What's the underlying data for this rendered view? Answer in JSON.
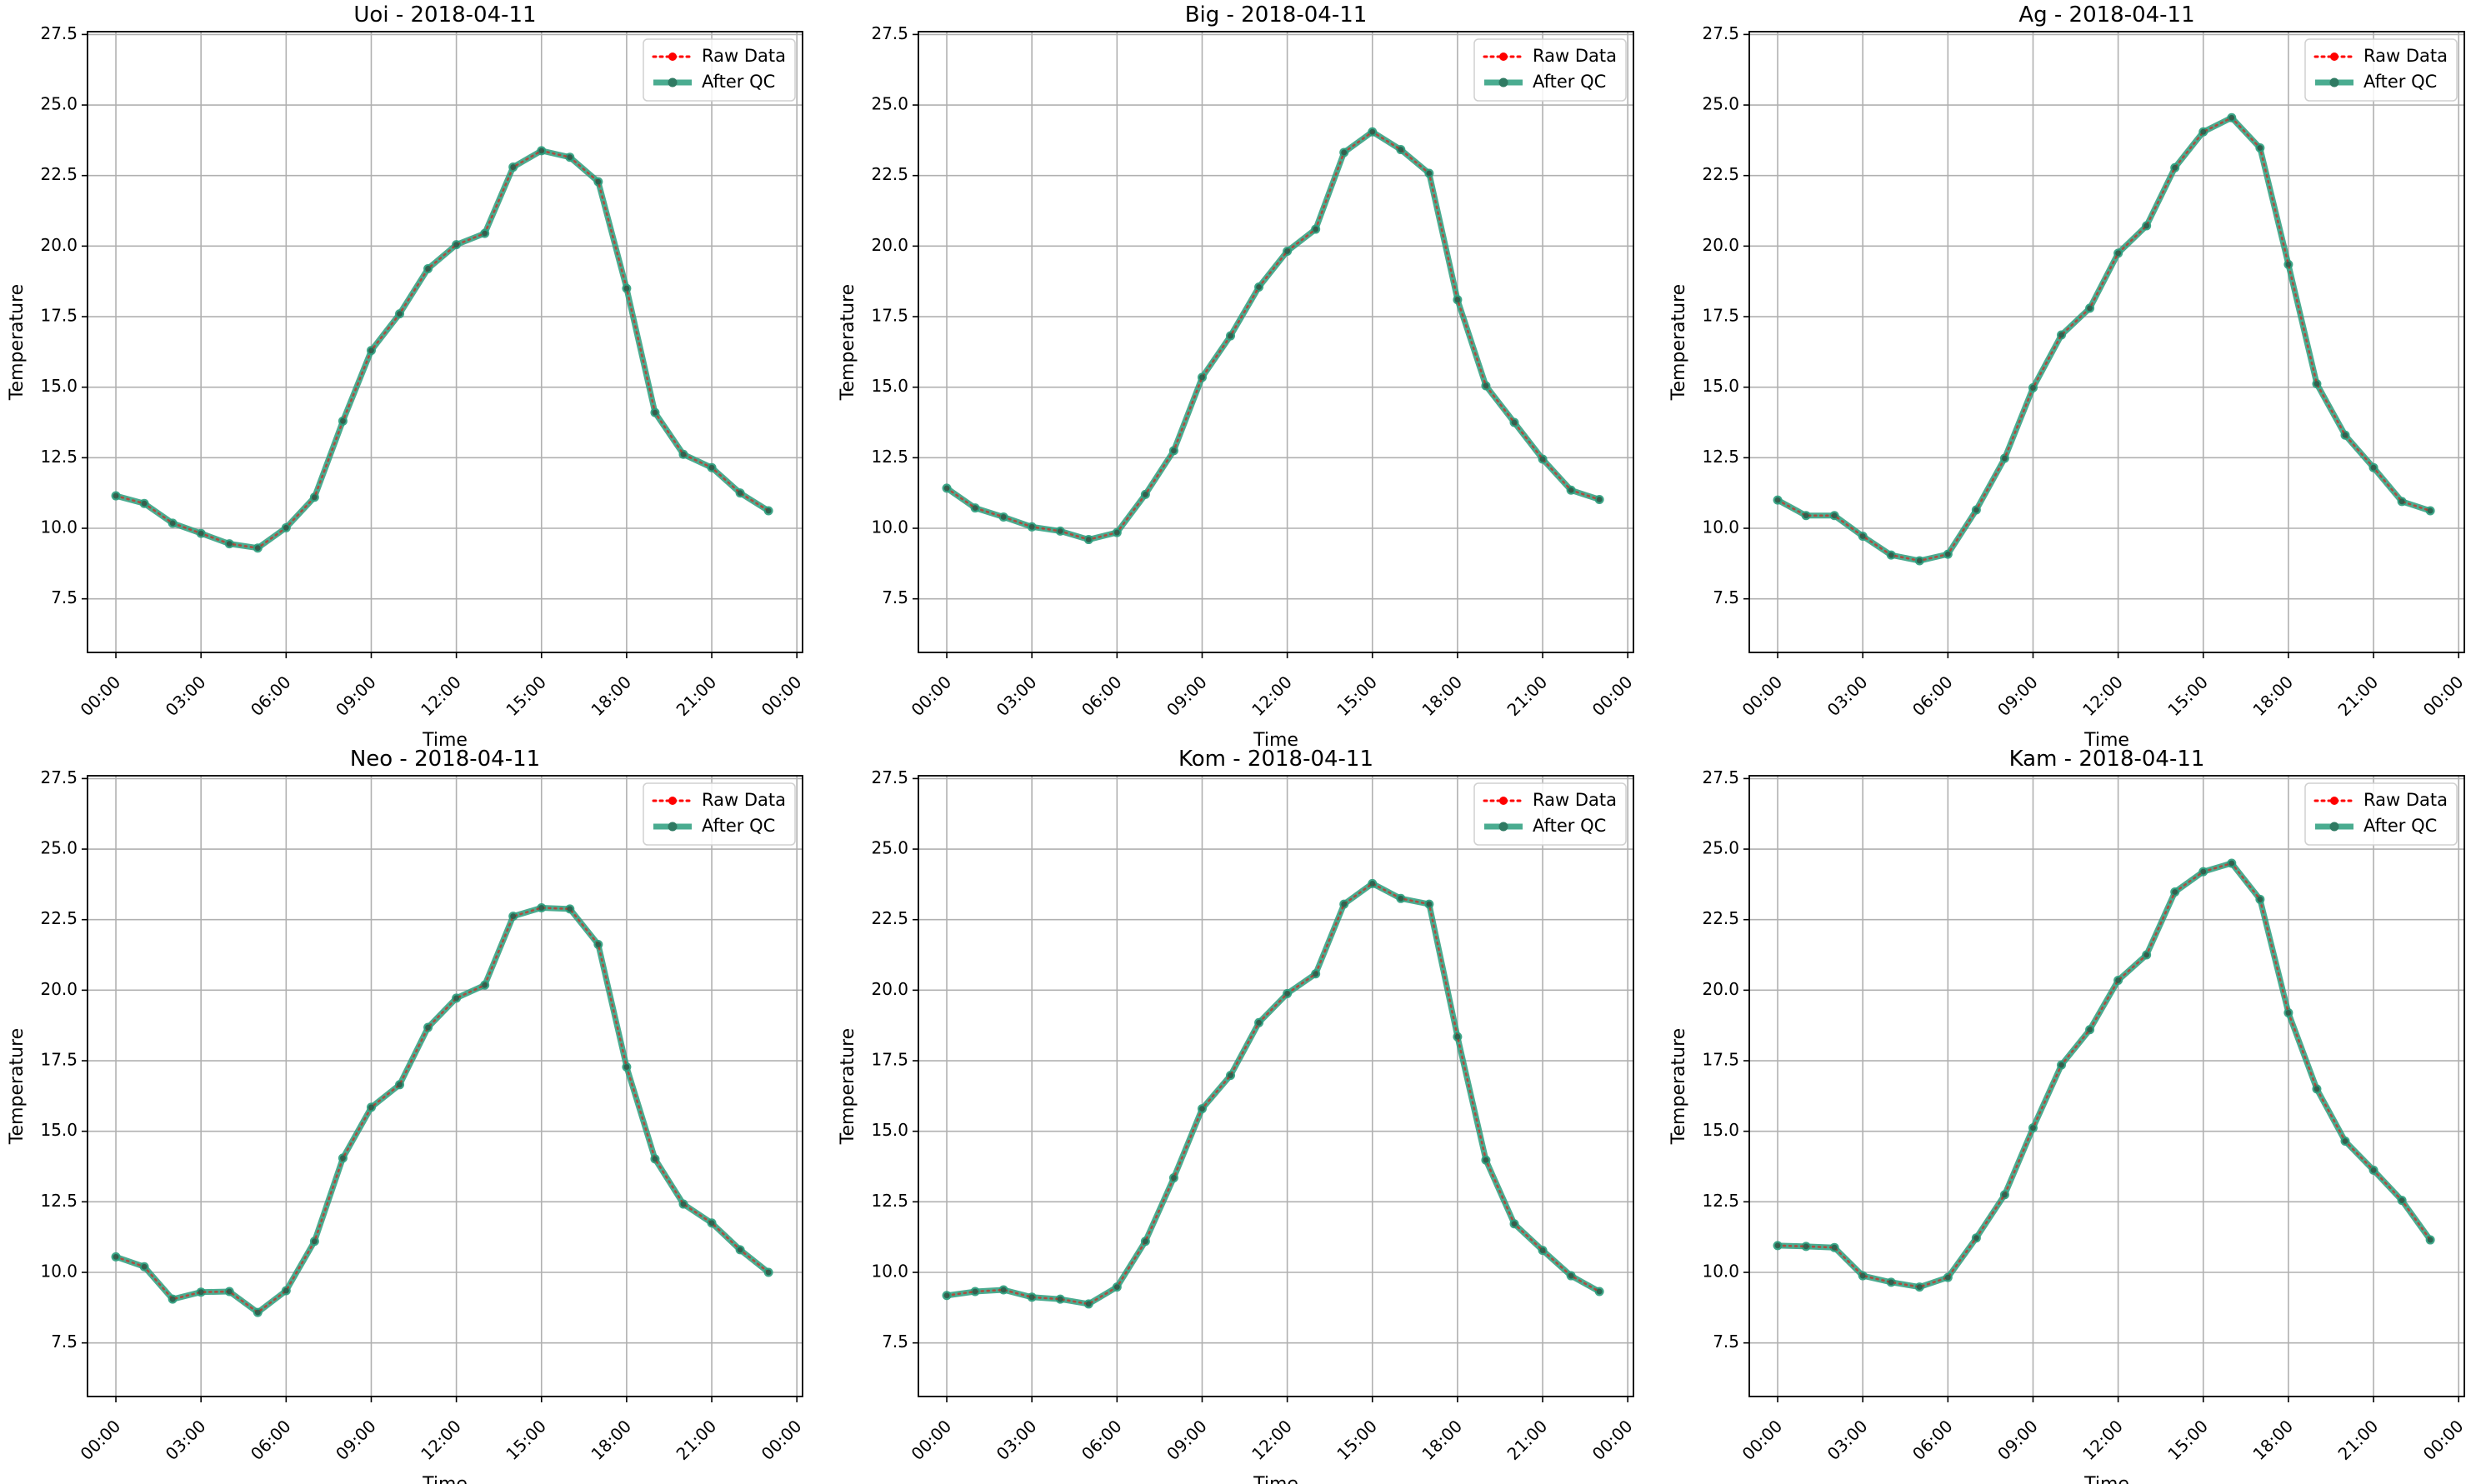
{
  "chart_data": [
    {
      "type": "line",
      "title": "Uoi - 2018-04-11",
      "xlabel": "Time",
      "ylabel": "Temperature",
      "x": [
        "00:00",
        "01:00",
        "02:00",
        "03:00",
        "04:00",
        "05:00",
        "06:00",
        "07:00",
        "08:00",
        "09:00",
        "10:00",
        "11:00",
        "12:00",
        "13:00",
        "14:00",
        "15:00",
        "16:00",
        "17:00",
        "18:00",
        "19:00",
        "20:00",
        "21:00",
        "22:00",
        "23:00"
      ],
      "xticks": [
        "00:00",
        "03:00",
        "06:00",
        "09:00",
        "12:00",
        "15:00",
        "18:00",
        "21:00",
        "00:00"
      ],
      "xlim_hours": [
        -1.0,
        24.2
      ],
      "ylim": [
        5.6,
        27.6
      ],
      "yticks": [
        "7.5",
        "10.0",
        "12.5",
        "15.0",
        "17.5",
        "20.0",
        "22.5",
        "25.0",
        "27.5"
      ],
      "grid": true,
      "legend": "top-right",
      "series": [
        {
          "name": "Raw Data",
          "color": "#ff0000",
          "style": "dotted",
          "values": [
            11.15,
            10.88,
            10.18,
            9.82,
            9.45,
            9.3,
            10.02,
            11.1,
            13.8,
            16.3,
            17.6,
            19.2,
            20.05,
            20.45,
            22.8,
            23.38,
            23.15,
            22.28,
            18.5,
            14.1,
            12.62,
            12.15,
            11.25,
            10.62
          ]
        },
        {
          "name": "After QC",
          "color": "#2a9d7c",
          "style": "solid",
          "values": [
            11.15,
            10.88,
            10.18,
            9.82,
            9.45,
            9.3,
            10.02,
            11.1,
            13.8,
            16.3,
            17.6,
            19.2,
            20.05,
            20.45,
            22.8,
            23.38,
            23.15,
            22.28,
            18.5,
            14.1,
            12.62,
            12.15,
            11.25,
            10.62
          ]
        }
      ]
    },
    {
      "type": "line",
      "title": "Big - 2018-04-11",
      "xlabel": "Time",
      "ylabel": "Temperature",
      "x": [
        "00:00",
        "01:00",
        "02:00",
        "03:00",
        "04:00",
        "05:00",
        "06:00",
        "07:00",
        "08:00",
        "09:00",
        "10:00",
        "11:00",
        "12:00",
        "13:00",
        "14:00",
        "15:00",
        "16:00",
        "17:00",
        "18:00",
        "19:00",
        "20:00",
        "21:00",
        "22:00",
        "23:00"
      ],
      "xticks": [
        "00:00",
        "03:00",
        "06:00",
        "09:00",
        "12:00",
        "15:00",
        "18:00",
        "21:00",
        "00:00"
      ],
      "xlim_hours": [
        -1.0,
        24.2
      ],
      "ylim": [
        5.6,
        27.6
      ],
      "yticks": [
        "7.5",
        "10.0",
        "12.5",
        "15.0",
        "17.5",
        "20.0",
        "22.5",
        "25.0",
        "27.5"
      ],
      "grid": true,
      "legend": "top-right",
      "series": [
        {
          "name": "Raw Data",
          "color": "#ff0000",
          "style": "dotted",
          "values": [
            11.42,
            10.72,
            10.4,
            10.05,
            9.9,
            9.6,
            9.85,
            11.2,
            12.75,
            15.35,
            16.82,
            18.55,
            19.82,
            20.6,
            23.32,
            24.05,
            23.42,
            22.58,
            18.1,
            15.05,
            13.75,
            12.45,
            11.35,
            11.02
          ]
        },
        {
          "name": "After QC",
          "color": "#2a9d7c",
          "style": "solid",
          "values": [
            11.42,
            10.72,
            10.4,
            10.05,
            9.9,
            9.6,
            9.85,
            11.2,
            12.75,
            15.35,
            16.82,
            18.55,
            19.82,
            20.6,
            23.32,
            24.05,
            23.42,
            22.58,
            18.1,
            15.05,
            13.75,
            12.45,
            11.35,
            11.02
          ]
        }
      ]
    },
    {
      "type": "line",
      "title": "Ag - 2018-04-11",
      "xlabel": "Time",
      "ylabel": "Temperature",
      "x": [
        "00:00",
        "01:00",
        "02:00",
        "03:00",
        "04:00",
        "05:00",
        "06:00",
        "07:00",
        "08:00",
        "09:00",
        "10:00",
        "11:00",
        "12:00",
        "13:00",
        "14:00",
        "15:00",
        "16:00",
        "17:00",
        "18:00",
        "19:00",
        "20:00",
        "21:00",
        "22:00",
        "23:00"
      ],
      "xticks": [
        "00:00",
        "03:00",
        "06:00",
        "09:00",
        "12:00",
        "15:00",
        "18:00",
        "21:00",
        "00:00"
      ],
      "xlim_hours": [
        -1.0,
        24.2
      ],
      "ylim": [
        5.6,
        27.6
      ],
      "yticks": [
        "7.5",
        "10.0",
        "12.5",
        "15.0",
        "17.5",
        "20.0",
        "22.5",
        "25.0",
        "27.5"
      ],
      "grid": true,
      "legend": "top-right",
      "series": [
        {
          "name": "Raw Data",
          "color": "#ff0000",
          "style": "dotted",
          "values": [
            11.0,
            10.45,
            10.45,
            9.72,
            9.05,
            8.85,
            9.08,
            10.65,
            12.48,
            14.98,
            16.85,
            17.8,
            19.75,
            20.72,
            22.78,
            24.05,
            24.55,
            23.48,
            19.35,
            15.12,
            13.3,
            12.15,
            10.95,
            10.62
          ]
        },
        {
          "name": "After QC",
          "color": "#2a9d7c",
          "style": "solid",
          "values": [
            11.0,
            10.45,
            10.45,
            9.72,
            9.05,
            8.85,
            9.08,
            10.65,
            12.48,
            14.98,
            16.85,
            17.8,
            19.75,
            20.72,
            22.78,
            24.05,
            24.55,
            23.48,
            19.35,
            15.12,
            13.3,
            12.15,
            10.95,
            10.62
          ]
        }
      ]
    },
    {
      "type": "line",
      "title": "Neo - 2018-04-11",
      "xlabel": "Time",
      "ylabel": "Temperature",
      "x": [
        "00:00",
        "01:00",
        "02:00",
        "03:00",
        "04:00",
        "05:00",
        "06:00",
        "07:00",
        "08:00",
        "09:00",
        "10:00",
        "11:00",
        "12:00",
        "13:00",
        "14:00",
        "15:00",
        "16:00",
        "17:00",
        "18:00",
        "19:00",
        "20:00",
        "21:00",
        "22:00",
        "23:00"
      ],
      "xticks": [
        "00:00",
        "03:00",
        "06:00",
        "09:00",
        "12:00",
        "15:00",
        "18:00",
        "21:00",
        "00:00"
      ],
      "xlim_hours": [
        -1.0,
        24.2
      ],
      "ylim": [
        5.6,
        27.6
      ],
      "yticks": [
        "7.5",
        "10.0",
        "12.5",
        "15.0",
        "17.5",
        "20.0",
        "22.5",
        "25.0",
        "27.5"
      ],
      "grid": true,
      "legend": "top-right",
      "series": [
        {
          "name": "Raw Data",
          "color": "#ff0000",
          "style": "dotted",
          "values": [
            10.55,
            10.2,
            9.05,
            9.3,
            9.32,
            8.58,
            9.35,
            11.1,
            14.05,
            15.85,
            16.65,
            18.68,
            19.72,
            20.18,
            22.62,
            22.92,
            22.88,
            21.62,
            17.28,
            14.02,
            12.42,
            11.75,
            10.8,
            10.0
          ]
        },
        {
          "name": "After QC",
          "color": "#2a9d7c",
          "style": "solid",
          "values": [
            10.55,
            10.2,
            9.05,
            9.3,
            9.32,
            8.58,
            9.35,
            11.1,
            14.05,
            15.85,
            16.65,
            18.68,
            19.72,
            20.18,
            22.62,
            22.92,
            22.88,
            21.62,
            17.28,
            14.02,
            12.42,
            11.75,
            10.8,
            10.0
          ]
        }
      ]
    },
    {
      "type": "line",
      "title": "Kom - 2018-04-11",
      "xlabel": "Time",
      "ylabel": "Temperature",
      "x": [
        "00:00",
        "01:00",
        "02:00",
        "03:00",
        "04:00",
        "05:00",
        "06:00",
        "07:00",
        "08:00",
        "09:00",
        "10:00",
        "11:00",
        "12:00",
        "13:00",
        "14:00",
        "15:00",
        "16:00",
        "17:00",
        "18:00",
        "19:00",
        "20:00",
        "21:00",
        "22:00",
        "23:00"
      ],
      "xticks": [
        "00:00",
        "03:00",
        "06:00",
        "09:00",
        "12:00",
        "15:00",
        "18:00",
        "21:00",
        "00:00"
      ],
      "xlim_hours": [
        -1.0,
        24.2
      ],
      "ylim": [
        5.6,
        27.6
      ],
      "yticks": [
        "7.5",
        "10.0",
        "12.5",
        "15.0",
        "17.5",
        "20.0",
        "22.5",
        "25.0",
        "27.5"
      ],
      "grid": true,
      "legend": "top-right",
      "series": [
        {
          "name": "Raw Data",
          "color": "#ff0000",
          "style": "dotted",
          "values": [
            9.18,
            9.32,
            9.38,
            9.12,
            9.05,
            8.88,
            9.48,
            11.1,
            13.35,
            15.8,
            16.98,
            18.85,
            19.88,
            20.58,
            23.05,
            23.78,
            23.25,
            23.05,
            18.35,
            13.98,
            11.72,
            10.78,
            9.88,
            9.32
          ]
        },
        {
          "name": "After QC",
          "color": "#2a9d7c",
          "style": "solid",
          "values": [
            9.18,
            9.32,
            9.38,
            9.12,
            9.05,
            8.88,
            9.48,
            11.1,
            13.35,
            15.8,
            16.98,
            18.85,
            19.88,
            20.58,
            23.05,
            23.78,
            23.25,
            23.05,
            18.35,
            13.98,
            11.72,
            10.78,
            9.88,
            9.32
          ]
        }
      ]
    },
    {
      "type": "line",
      "title": "Kam - 2018-04-11",
      "xlabel": "Time",
      "ylabel": "Temperature",
      "x": [
        "00:00",
        "01:00",
        "02:00",
        "03:00",
        "04:00",
        "05:00",
        "06:00",
        "07:00",
        "08:00",
        "09:00",
        "10:00",
        "11:00",
        "12:00",
        "13:00",
        "14:00",
        "15:00",
        "16:00",
        "17:00",
        "18:00",
        "19:00",
        "20:00",
        "21:00",
        "22:00",
        "23:00"
      ],
      "xticks": [
        "00:00",
        "03:00",
        "06:00",
        "09:00",
        "12:00",
        "15:00",
        "18:00",
        "21:00",
        "00:00"
      ],
      "xlim_hours": [
        -1.0,
        24.2
      ],
      "ylim": [
        5.6,
        27.6
      ],
      "yticks": [
        "7.5",
        "10.0",
        "12.5",
        "15.0",
        "17.5",
        "20.0",
        "22.5",
        "25.0",
        "27.5"
      ],
      "grid": true,
      "legend": "top-right",
      "series": [
        {
          "name": "Raw Data",
          "color": "#ff0000",
          "style": "dotted",
          "values": [
            10.95,
            10.92,
            10.88,
            9.88,
            9.65,
            9.48,
            9.82,
            11.22,
            12.75,
            15.12,
            17.35,
            18.6,
            20.35,
            21.25,
            23.48,
            24.2,
            24.5,
            23.22,
            19.2,
            16.5,
            14.65,
            13.62,
            12.55,
            11.15
          ]
        },
        {
          "name": "After QC",
          "color": "#2a9d7c",
          "style": "solid",
          "values": [
            10.95,
            10.92,
            10.88,
            9.88,
            9.65,
            9.48,
            9.82,
            11.22,
            12.75,
            15.12,
            17.35,
            18.6,
            20.35,
            21.25,
            23.48,
            24.2,
            24.5,
            23.22,
            19.2,
            16.5,
            14.65,
            13.62,
            12.55,
            11.15
          ]
        }
      ]
    }
  ]
}
